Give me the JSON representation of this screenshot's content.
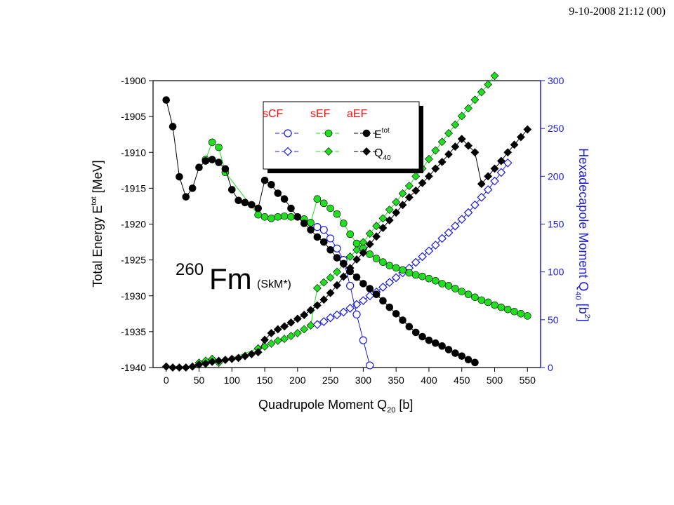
{
  "header": {
    "timestamp": "9-10-2008  21:12 (00)"
  },
  "colors": {
    "blue": "#1a1adb",
    "green": "#22dd22",
    "black": "#000000",
    "red": "#ee1111"
  },
  "chart_data": {
    "type": "scatter",
    "title": "",
    "annotation": {
      "mass": "260",
      "element": "Fm",
      "force": "(SkM*)"
    },
    "legend": {
      "placement": "top-center",
      "column_headers": [
        "sCF",
        "sEF",
        "aEF"
      ],
      "row_labels": [
        {
          "main": "E",
          "sup": "tot",
          "sub": ""
        },
        {
          "main": "Q",
          "sup": "",
          "sub": "40"
        }
      ]
    },
    "x_axis": {
      "title": "Quadrupole Moment Q",
      "title_sub": "20",
      "title_tail": " [b]",
      "range": [
        -20,
        570
      ],
      "ticks": [
        "0",
        "50",
        "100",
        "150",
        "200",
        "250",
        "300",
        "350",
        "400",
        "450",
        "500",
        "550"
      ]
    },
    "y_axis_left": {
      "title": "Total Energy E",
      "title_sup": "tot",
      "title_tail": " [MeV]",
      "range": [
        -1940,
        -1900
      ],
      "ticks": [
        "-1900",
        "-1905",
        "-1910",
        "-1915",
        "-1920",
        "-1925",
        "-1930",
        "-1935",
        "-1940"
      ]
    },
    "y_axis_right": {
      "title": "Hexadecapole Moment Q",
      "title_sub": "40",
      "title_tail": " [b",
      "title_sup": "2",
      "title_end": "]",
      "range": [
        0,
        300
      ],
      "ticks": [
        "0",
        "50",
        "100",
        "150",
        "200",
        "250",
        "300"
      ]
    },
    "series": [
      {
        "key": "E_aEF",
        "color_key": "black",
        "marker": "circle",
        "filled": true,
        "axis": "left",
        "x": [
          0,
          10,
          20,
          30,
          40,
          50,
          60,
          70,
          80,
          90,
          100,
          110,
          120,
          130,
          140,
          150,
          160,
          170,
          180,
          190,
          200,
          210,
          220,
          230,
          240,
          250,
          260,
          270,
          280,
          290,
          300,
          310,
          320,
          330,
          340,
          350,
          360,
          370,
          380,
          390,
          400,
          410,
          420,
          430,
          440,
          450,
          460,
          470
        ],
        "y": [
          -1902.7,
          -1906.4,
          -1913.4,
          -1916.2,
          -1915.0,
          -1912.1,
          -1911.2,
          -1911.0,
          -1911.4,
          -1912.3,
          -1915.2,
          -1916.7,
          -1917.0,
          -1917.3,
          -1917.8,
          -1913.9,
          -1914.5,
          -1915.7,
          -1916.5,
          -1917.8,
          -1919.0,
          -1919.9,
          -1920.8,
          -1921.8,
          -1922.5,
          -1923.6,
          -1924.7,
          -1925.5,
          -1926.6,
          -1927.4,
          -1928.3,
          -1929.0,
          -1929.8,
          -1930.7,
          -1931.6,
          -1932.5,
          -1933.4,
          -1934.3,
          -1935.1,
          -1935.7,
          -1936.2,
          -1936.6,
          -1937.0,
          -1937.5,
          -1938.0,
          -1938.4,
          -1938.9,
          -1939.3
        ]
      },
      {
        "key": "E_sEF",
        "color_key": "green",
        "marker": "circle",
        "filled": true,
        "axis": "left",
        "x": [
          60,
          70,
          80,
          90,
          140,
          150,
          160,
          170,
          180,
          190,
          200,
          210,
          220,
          230,
          240,
          250,
          260,
          270,
          280,
          290,
          300,
          310,
          320,
          330,
          340,
          350,
          360,
          370,
          380,
          390,
          400,
          410,
          420,
          430,
          440,
          450,
          460,
          470,
          480,
          490,
          500,
          510,
          520,
          530,
          540,
          550
        ],
        "y": [
          -1911.0,
          -1908.6,
          -1909.3,
          -1912.8,
          -1918.7,
          -1919.0,
          -1919.2,
          -1919.0,
          -1918.9,
          -1919.0,
          -1919.0,
          -1919.3,
          -1919.8,
          -1916.5,
          -1917.1,
          -1917.8,
          -1918.6,
          -1919.9,
          -1921.4,
          -1922.7,
          -1923.4,
          -1924.2,
          -1924.8,
          -1925.3,
          -1925.8,
          -1926.1,
          -1926.4,
          -1926.8,
          -1927.1,
          -1927.3,
          -1927.6,
          -1927.9,
          -1928.3,
          -1928.6,
          -1929.0,
          -1929.4,
          -1929.8,
          -1930.2,
          -1930.6,
          -1930.9,
          -1931.3,
          -1931.6,
          -1931.9,
          -1932.2,
          -1932.5,
          -1932.8
        ]
      },
      {
        "key": "E_sCF",
        "color_key": "blue",
        "marker": "circle",
        "filled": false,
        "axis": "left",
        "x": [
          230,
          240,
          250,
          260,
          270,
          280,
          290,
          300,
          310
        ],
        "y": [
          -1920.4,
          -1920.8,
          -1922.0,
          -1923.4,
          -1925.0,
          -1928.6,
          -1932.6,
          -1936.2,
          -1939.7
        ]
      },
      {
        "key": "Q_aEF",
        "color_key": "black",
        "marker": "diamond",
        "filled": true,
        "axis": "right",
        "x": [
          0,
          10,
          20,
          30,
          40,
          50,
          60,
          70,
          80,
          90,
          100,
          110,
          120,
          130,
          140,
          150,
          160,
          170,
          180,
          190,
          200,
          210,
          220,
          230,
          240,
          250,
          260,
          270,
          280,
          290,
          300,
          310,
          320,
          330,
          340,
          350,
          360,
          370,
          380,
          390,
          400,
          410,
          420,
          430,
          440,
          450,
          460,
          470,
          480,
          490,
          500,
          510,
          520,
          530,
          540,
          550
        ],
        "y": [
          1,
          0,
          0,
          0,
          1,
          3,
          4,
          6,
          7,
          8,
          9,
          10,
          12,
          14,
          16,
          29,
          36,
          40,
          43,
          47,
          51,
          55,
          60,
          65,
          71,
          78,
          86,
          95,
          104,
          113,
          120,
          129,
          137,
          146,
          154,
          162,
          170,
          178,
          185,
          193,
          200,
          208,
          215,
          223,
          231,
          239,
          232,
          225,
          192,
          200,
          208,
          216,
          225,
          233,
          241,
          249
        ]
      },
      {
        "key": "Q_sEF",
        "color_key": "green",
        "marker": "diamond",
        "filled": true,
        "axis": "right",
        "x": [
          50,
          60,
          70,
          80,
          140,
          150,
          160,
          170,
          180,
          190,
          200,
          210,
          220,
          230,
          240,
          250,
          260,
          270,
          280,
          290,
          300,
          310,
          320,
          330,
          340,
          350,
          360,
          370,
          380,
          390,
          400,
          410,
          420,
          430,
          440,
          450,
          460,
          470,
          480,
          490,
          500
        ],
        "y": [
          5,
          7,
          9,
          5,
          20,
          22,
          25,
          28,
          30,
          33,
          36,
          40,
          44,
          83,
          89,
          94,
          100,
          108,
          116,
          123,
          131,
          140,
          148,
          156,
          165,
          173,
          182,
          190,
          200,
          208,
          218,
          227,
          236,
          245,
          254,
          263,
          271,
          280,
          288,
          296,
          305
        ]
      },
      {
        "key": "Q_sCF",
        "color_key": "blue",
        "marker": "diamond",
        "filled": false,
        "axis": "right",
        "x": [
          230,
          240,
          250,
          260,
          270,
          280,
          290,
          300,
          310,
          320,
          330,
          340,
          350,
          360,
          370,
          380,
          390,
          400,
          410,
          420,
          430,
          440,
          450,
          460,
          470,
          480,
          490,
          500,
          510,
          520
        ],
        "y": [
          45,
          48,
          52,
          55,
          58,
          62,
          66,
          70,
          75,
          79,
          84,
          89,
          94,
          99,
          104,
          110,
          116,
          122,
          128,
          135,
          141,
          148,
          155,
          162,
          170,
          178,
          186,
          195,
          204,
          214
        ]
      }
    ]
  }
}
